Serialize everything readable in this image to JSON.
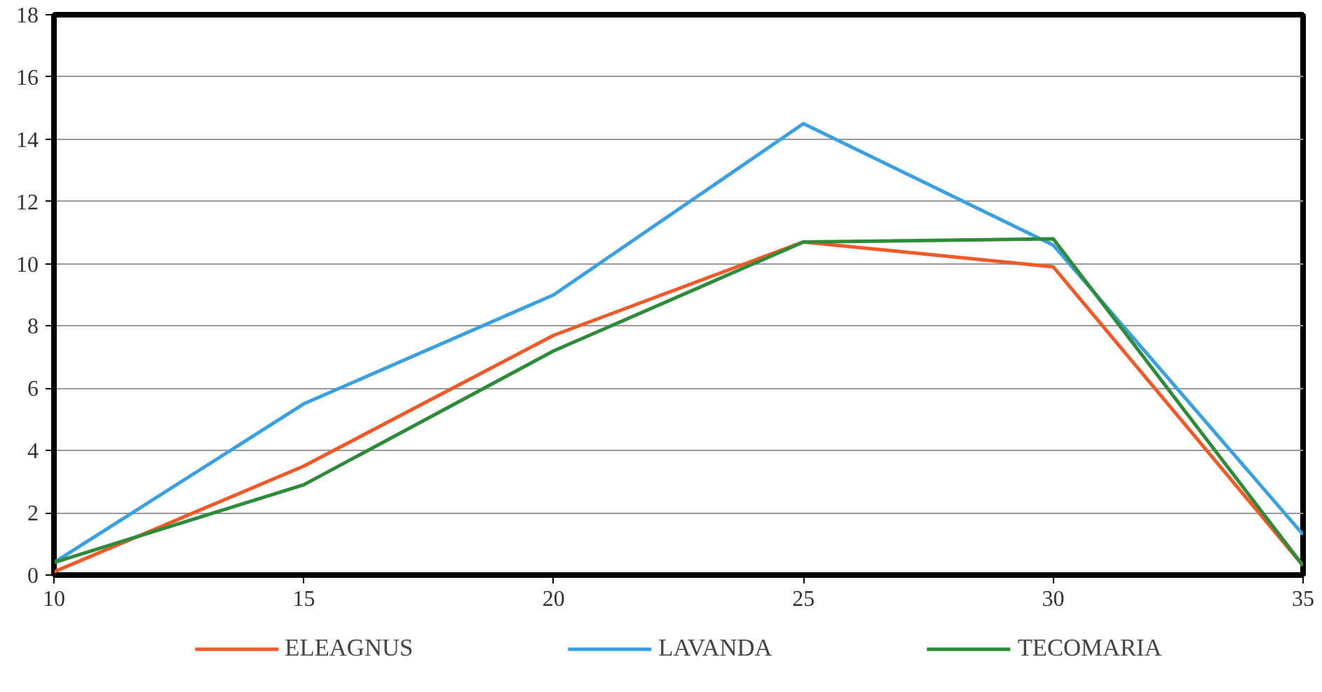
{
  "chart_data": {
    "type": "line",
    "x": [
      10,
      15,
      20,
      25,
      30,
      35
    ],
    "series": [
      {
        "name": "ELEAGNUS",
        "color": "#f05a28",
        "values": [
          0.1,
          3.5,
          7.7,
          10.7,
          9.9,
          0.3
        ]
      },
      {
        "name": "LAVANDA",
        "color": "#3aa0e0",
        "values": [
          0.4,
          5.5,
          9.0,
          14.5,
          10.6,
          1.3
        ]
      },
      {
        "name": "TECOMARIA",
        "color": "#2e8b3a",
        "values": [
          0.4,
          2.9,
          7.2,
          10.7,
          10.8,
          0.3
        ]
      }
    ],
    "xlim": [
      10,
      35
    ],
    "xticks": [
      10,
      15,
      20,
      25,
      30,
      35
    ],
    "ylim": [
      0,
      18
    ],
    "yticks": [
      0,
      2,
      4,
      6,
      8,
      10,
      12,
      14,
      16,
      18
    ],
    "grid": "y",
    "legend": "bottom",
    "marker": "none",
    "line_style": "solid"
  }
}
